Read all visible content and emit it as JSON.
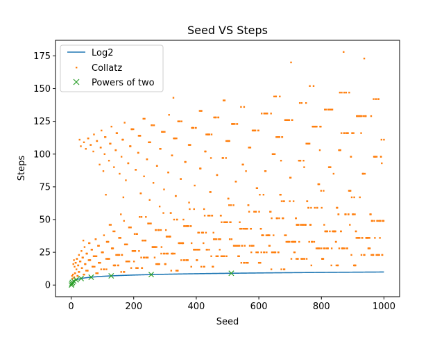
{
  "chart_data": {
    "type": "scatter",
    "title": "Seed VS Steps",
    "xlabel": "Seed",
    "ylabel": "Steps",
    "xlim": [
      -50,
      1050
    ],
    "ylim": [
      -8.9,
      186.9
    ],
    "xticks": [
      0,
      200,
      400,
      600,
      800,
      1000
    ],
    "yticks": [
      0,
      25,
      50,
      75,
      100,
      125,
      150,
      175
    ],
    "grid": false,
    "legend_position": "top-left",
    "series": [
      {
        "name": "Log2",
        "kind": "line",
        "color": "#1f77b4"
      },
      {
        "name": "Collatz",
        "kind": "points",
        "color": "#ff7f0e"
      },
      {
        "name": "Powers of two",
        "kind": "x-markers",
        "color": "#2ca02c",
        "x": [
          1,
          2,
          4,
          8,
          16,
          32,
          64,
          128,
          256,
          512
        ],
        "y": [
          0,
          1,
          2,
          3,
          4,
          5,
          6,
          7,
          8,
          9
        ]
      }
    ]
  }
}
